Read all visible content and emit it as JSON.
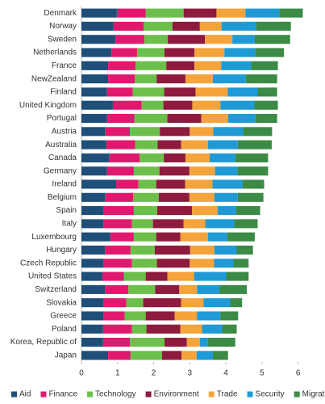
{
  "chart_data": {
    "type": "stacked_bar_horizontal",
    "categories": [
      "Denmark",
      "Norway",
      "Sweden",
      "Netherlands",
      "France",
      "NewZealand",
      "Finland",
      "United Kingdom",
      "Portugal",
      "Austria",
      "Australia",
      "Canada",
      "Germany",
      "Ireland",
      "Belgium",
      "Spain",
      "Italy",
      "Luxembourg",
      "Hungary",
      "Czech Republic",
      "United States",
      "Switzerland",
      "Slovakia",
      "Greece",
      "Poland",
      "Korea, Republic of",
      "Japan"
    ],
    "series": [
      {
        "name": "Aid",
        "color": "#1f4e79",
        "values": [
          0.98,
          0.89,
          0.94,
          0.83,
          0.74,
          0.74,
          0.71,
          0.87,
          0.71,
          0.65,
          0.69,
          0.76,
          0.71,
          0.96,
          0.65,
          0.62,
          0.62,
          0.8,
          0.65,
          0.62,
          0.58,
          0.65,
          0.62,
          0.62,
          0.6,
          0.6,
          0.74
        ]
      },
      {
        "name": "Finance",
        "color": "#e0196e",
        "values": [
          0.8,
          0.83,
          0.8,
          0.71,
          0.76,
          0.74,
          0.71,
          0.8,
          0.76,
          0.69,
          0.8,
          0.85,
          0.74,
          0.62,
          0.78,
          0.83,
          0.78,
          0.65,
          0.71,
          0.78,
          0.6,
          0.65,
          0.62,
          0.58,
          0.8,
          0.74,
          0.62
        ]
      },
      {
        "name": "Technology",
        "color": "#6dbf4b",
        "values": [
          1.05,
          0.8,
          0.65,
          0.76,
          0.85,
          0.6,
          0.87,
          0.6,
          0.91,
          0.83,
          0.62,
          0.67,
          0.71,
          0.49,
          0.71,
          0.65,
          0.58,
          0.62,
          0.67,
          0.69,
          0.6,
          0.74,
          0.47,
          0.58,
          0.4,
          0.96,
          0.87
        ]
      },
      {
        "name": "Environment",
        "color": "#8e1a3e",
        "values": [
          0.91,
          0.76,
          1.03,
          0.83,
          0.78,
          0.8,
          0.87,
          0.8,
          0.94,
          0.83,
          0.65,
          0.6,
          0.83,
          0.8,
          0.85,
          0.96,
          0.85,
          0.67,
          0.98,
          0.91,
          0.6,
          0.67,
          1.05,
          0.8,
          0.94,
          0.62,
          0.54
        ]
      },
      {
        "name": "Trade",
        "color": "#f5a33b",
        "values": [
          0.8,
          0.6,
          0.76,
          0.83,
          0.74,
          0.76,
          0.89,
          0.78,
          0.74,
          0.65,
          0.74,
          0.67,
          0.71,
          0.76,
          0.69,
          0.71,
          0.6,
          0.76,
          0.67,
          0.67,
          0.74,
          0.49,
          0.62,
          0.62,
          0.6,
          0.36,
          0.42
        ]
      },
      {
        "name": "Security",
        "color": "#1f9ad6",
        "values": [
          0.94,
          0.96,
          0.62,
          0.85,
          0.83,
          0.91,
          0.83,
          0.94,
          0.76,
          0.83,
          0.83,
          0.71,
          0.62,
          0.83,
          0.65,
          0.51,
          0.8,
          0.54,
          0.62,
          0.54,
          0.89,
          0.62,
          0.74,
          0.65,
          0.56,
          0.22,
          0.45
        ]
      },
      {
        "name": "Migration",
        "color": "#3b8a45",
        "values": [
          0.65,
          0.96,
          0.98,
          0.8,
          0.74,
          0.87,
          0.54,
          0.65,
          0.6,
          0.8,
          0.94,
          0.91,
          0.85,
          0.6,
          0.71,
          0.67,
          0.65,
          0.76,
          0.45,
          0.42,
          0.62,
          0.76,
          0.33,
          0.49,
          0.4,
          0.76,
          0.42
        ]
      }
    ],
    "xlim": [
      0,
      6.5
    ],
    "xticks": [
      0,
      1,
      2,
      3,
      4,
      5,
      6
    ],
    "legend": "bottom"
  }
}
